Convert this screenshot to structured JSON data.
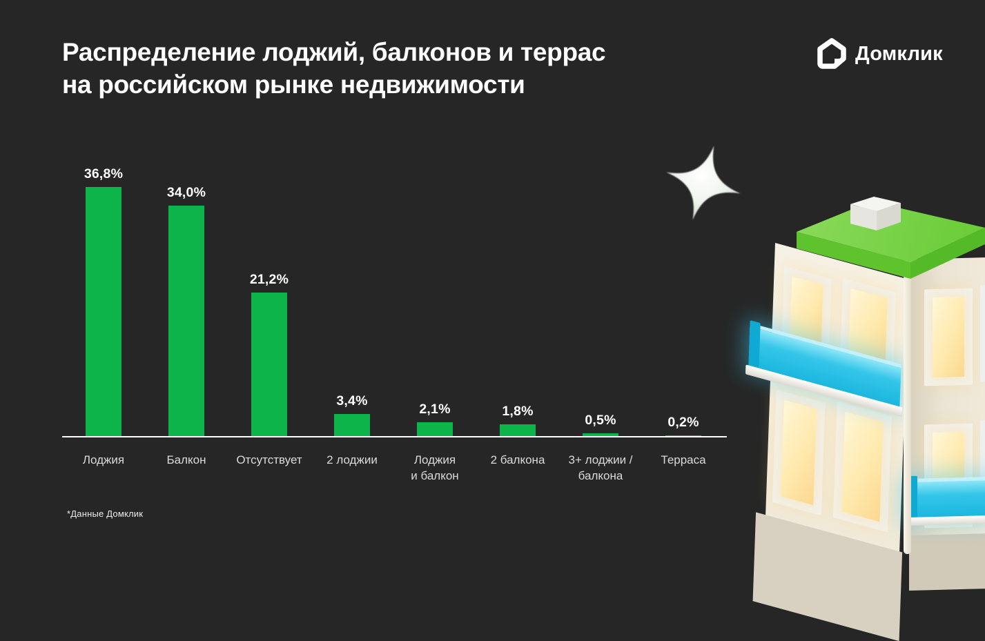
{
  "header": {
    "title_line1": "Распределение лоджий, балконов и террас",
    "title_line2": "на российском рынке недвижимости",
    "logo_text": "Домклик"
  },
  "chart_data": {
    "type": "bar",
    "title": "Распределение лоджий, балконов и террас на российском рынке недвижимости",
    "categories": [
      "Лоджия",
      "Балкон",
      "Отсутствует",
      "2 лоджии",
      "Лоджия\nи балкон",
      "2 балкона",
      "3+ лоджии /\nбалкона",
      "Терраса"
    ],
    "values": [
      36.8,
      34.0,
      21.2,
      3.4,
      2.1,
      1.8,
      0.5,
      0.2
    ],
    "value_labels": [
      "36,8%",
      "34,0%",
      "21,2%",
      "3,4%",
      "2,1%",
      "1,8%",
      "0,5%",
      "0,2%"
    ],
    "unit": "%",
    "bar_color": "#0cb44a",
    "axis_line_color": "#ffffff",
    "ylim": [
      0,
      40
    ],
    "grid": false,
    "legend": false,
    "value_label_position": "above-bar"
  },
  "footnote": "*Данные Домклик",
  "colors": {
    "background": "#262626",
    "bar_green": "#0cb44a",
    "roof_green": "#6fcf3a",
    "balcony_cyan": "#2ec3e8",
    "window_warm": "#ffe9ae",
    "text_primary": "#ffffff",
    "text_secondary": "#dbdbdb"
  },
  "decorations": {
    "star_icon": "four-point-sparkle",
    "building_illustration": "3d-house-green-roof-glowing-windows-cyan-balconies"
  }
}
